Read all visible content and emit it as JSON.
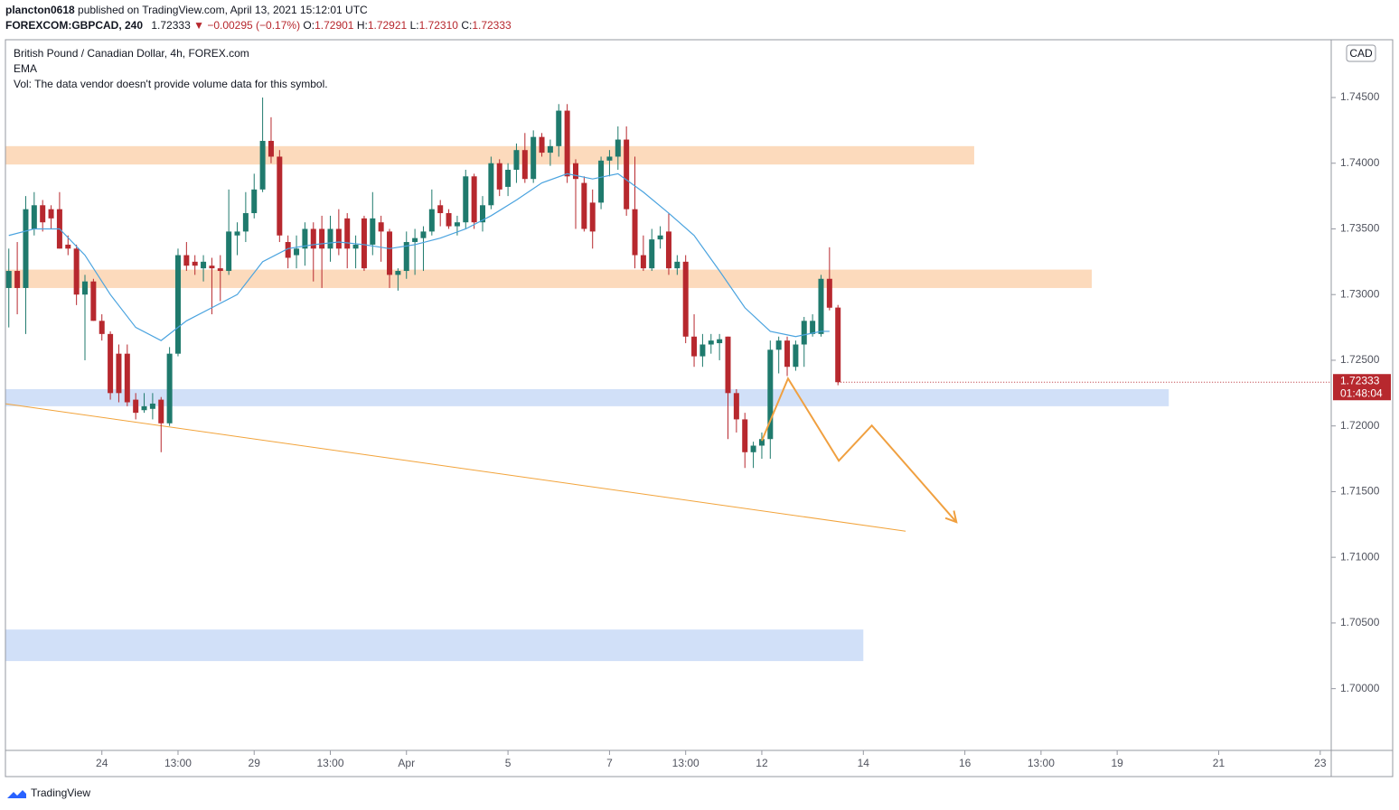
{
  "header": {
    "user": "plancton0618",
    "published": " published on TradingView.com, April 13, 2021 15:12:01 UTC",
    "symbol": "FOREXCOM:GBPCAD, 240",
    "last": "1.72333",
    "change": "▼ −0.00295 (−0.17%)",
    "ohlc": [
      {
        "label": "O:",
        "value": "1.72901"
      },
      {
        "label": "H:",
        "value": "1.72921"
      },
      {
        "label": "L:",
        "value": "1.72310"
      },
      {
        "label": "C:",
        "value": "1.72333"
      }
    ]
  },
  "footer": {
    "brand": "TradingView"
  },
  "chart_data": {
    "type": "candlestick",
    "title": "British Pound / Canadian Dollar, 4h, FOREX.com",
    "volume_note": "Vol: The data vendor doesn't provide volume data for this symbol.",
    "currency": "CAD",
    "countdown": "01:48:04",
    "up_color": "#1f7a6d",
    "down_color": "#b7282e",
    "open": [
      1.7305,
      1.7318,
      1.7305,
      1.735,
      1.7368,
      1.7365,
      1.7365,
      1.7338,
      1.7335,
      1.73,
      1.731,
      1.728,
      1.727,
      1.7255,
      1.7255,
      1.722,
      1.7212,
      1.7213,
      1.722,
      1.7202,
      1.7255,
      1.733,
      1.7325,
      1.732,
      1.7322,
      1.732,
      1.7318,
      1.7345,
      1.7348,
      1.7362,
      1.738,
      1.7417,
      1.7405,
      1.734,
      1.733,
      1.7335,
      1.735,
      1.735,
      1.7335,
      1.735,
      1.7358,
      1.7335,
      1.7358,
      1.7338,
      1.7355,
      1.7348,
      1.7315,
      1.7318,
      1.734,
      1.7343,
      1.7348,
      1.7368,
      1.7362,
      1.7352,
      1.7355,
      1.739,
      1.7355,
      1.7368,
      1.74,
      1.7382,
      1.7395,
      1.741,
      1.7388,
      1.742,
      1.7408,
      1.7413,
      1.744,
      1.74,
      1.7385,
      1.737,
      1.737,
      1.7402,
      1.7405,
      1.7418,
      1.7365,
      1.733,
      1.732,
      1.7342,
      1.7348,
      1.732,
      1.7325,
      1.7268,
      1.7253,
      1.7262,
      1.7263,
      1.7268,
      1.7225,
      1.7205,
      1.718,
      1.7185,
      1.719,
      1.7258,
      1.7265,
      1.7245,
      1.7262,
      1.727,
      1.727,
      1.7312,
      1.72901
    ],
    "high": [
      1.7335,
      1.734,
      1.7375,
      1.7378,
      1.7372,
      1.7368,
      1.7378,
      1.7345,
      1.7338,
      1.7315,
      1.7312,
      1.7285,
      1.7272,
      1.7262,
      1.7262,
      1.7225,
      1.7225,
      1.7225,
      1.7222,
      1.726,
      1.7335,
      1.734,
      1.733,
      1.733,
      1.7328,
      1.733,
      1.738,
      1.7355,
      1.7378,
      1.7392,
      1.745,
      1.7435,
      1.741,
      1.7345,
      1.7345,
      1.7355,
      1.7355,
      1.736,
      1.736,
      1.7365,
      1.7362,
      1.7345,
      1.736,
      1.7378,
      1.736,
      1.735,
      1.732,
      1.7348,
      1.735,
      1.7352,
      1.738,
      1.7372,
      1.7365,
      1.736,
      1.7395,
      1.7392,
      1.7375,
      1.7405,
      1.7403,
      1.74,
      1.7415,
      1.7423,
      1.7425,
      1.7423,
      1.7418,
      1.7445,
      1.7445,
      1.7403,
      1.739,
      1.738,
      1.7405,
      1.741,
      1.7428,
      1.7428,
      1.7405,
      1.7345,
      1.735,
      1.7352,
      1.7362,
      1.733,
      1.733,
      1.7285,
      1.727,
      1.727,
      1.727,
      1.7268,
      1.7228,
      1.721,
      1.7188,
      1.7195,
      1.7265,
      1.7268,
      1.7268,
      1.7265,
      1.7283,
      1.7285,
      1.7315,
      1.7336,
      1.72921
    ],
    "low": [
      1.7275,
      1.7285,
      1.727,
      1.7345,
      1.7348,
      1.735,
      1.7335,
      1.733,
      1.7292,
      1.725,
      1.728,
      1.7265,
      1.722,
      1.7218,
      1.7215,
      1.7205,
      1.721,
      1.7205,
      1.718,
      1.72,
      1.7253,
      1.7318,
      1.7315,
      1.731,
      1.7285,
      1.7295,
      1.7315,
      1.733,
      1.734,
      1.7358,
      1.7378,
      1.74,
      1.734,
      1.732,
      1.732,
      1.7322,
      1.731,
      1.7305,
      1.7325,
      1.733,
      1.732,
      1.732,
      1.7318,
      1.733,
      1.7325,
      1.7305,
      1.7303,
      1.7312,
      1.7315,
      1.7318,
      1.7345,
      1.7352,
      1.735,
      1.7345,
      1.735,
      1.735,
      1.7348,
      1.7365,
      1.7375,
      1.7375,
      1.7385,
      1.7385,
      1.7385,
      1.7405,
      1.7398,
      1.7405,
      1.7385,
      1.735,
      1.7348,
      1.7335,
      1.7365,
      1.739,
      1.7395,
      1.736,
      1.732,
      1.7318,
      1.7318,
      1.7335,
      1.7315,
      1.7315,
      1.7263,
      1.7245,
      1.7245,
      1.7255,
      1.725,
      1.719,
      1.7195,
      1.7168,
      1.7168,
      1.7175,
      1.7175,
      1.724,
      1.7238,
      1.7242,
      1.7245,
      1.7268,
      1.7268,
      1.7288,
      1.7231
    ],
    "close": [
      1.7318,
      1.7305,
      1.7365,
      1.7368,
      1.7355,
      1.7358,
      1.7335,
      1.7335,
      1.73,
      1.731,
      1.728,
      1.727,
      1.7225,
      1.7225,
      1.7218,
      1.721,
      1.7215,
      1.7217,
      1.7202,
      1.7255,
      1.733,
      1.7322,
      1.7322,
      1.7325,
      1.732,
      1.7318,
      1.7348,
      1.7348,
      1.7362,
      1.738,
      1.7417,
      1.7405,
      1.7345,
      1.7328,
      1.7335,
      1.735,
      1.7335,
      1.7335,
      1.735,
      1.7335,
      1.7335,
      1.7338,
      1.732,
      1.7358,
      1.7348,
      1.7315,
      1.7318,
      1.734,
      1.7343,
      1.7348,
      1.7365,
      1.7362,
      1.7352,
      1.7355,
      1.739,
      1.7355,
      1.7368,
      1.74,
      1.738,
      1.7395,
      1.741,
      1.7388,
      1.742,
      1.7408,
      1.7413,
      1.744,
      1.739,
      1.7388,
      1.735,
      1.7348,
      1.7402,
      1.7405,
      1.7418,
      1.7365,
      1.733,
      1.732,
      1.7342,
      1.7345,
      1.732,
      1.7325,
      1.7268,
      1.7253,
      1.7262,
      1.7265,
      1.7266,
      1.7225,
      1.7205,
      1.718,
      1.7185,
      1.719,
      1.7258,
      1.7265,
      1.7245,
      1.7262,
      1.728,
      1.728,
      1.7312,
      1.729,
      1.72333
    ],
    "ema": {
      "name": "EMA",
      "color": "#4aa3df",
      "x": [
        0,
        3,
        6,
        9,
        12,
        15,
        18,
        21,
        24,
        27,
        30,
        33,
        36,
        39,
        42,
        45,
        48,
        51,
        54,
        57,
        60,
        63,
        66,
        69,
        72,
        75,
        78,
        81,
        84,
        87,
        90,
        93,
        96,
        97
      ],
      "values": [
        1.7345,
        1.735,
        1.735,
        1.733,
        1.73,
        1.7275,
        1.7265,
        1.728,
        1.729,
        1.73,
        1.7325,
        1.7335,
        1.7338,
        1.734,
        1.7338,
        1.7335,
        1.7338,
        1.7343,
        1.735,
        1.736,
        1.7372,
        1.7385,
        1.7392,
        1.7388,
        1.7392,
        1.7378,
        1.7362,
        1.7345,
        1.7318,
        1.729,
        1.7272,
        1.7268,
        1.7272,
        1.7272
      ]
    },
    "zones": [
      {
        "color": "#fbd3b0",
        "from": 1.7399,
        "to": 1.7413,
        "end": 114.1
      },
      {
        "color": "#fbd3b0",
        "from": 1.7305,
        "to": 1.7319,
        "end": 128.0
      },
      {
        "color": "#c9dbf7",
        "from": 1.7215,
        "to": 1.7228,
        "end": 137.1
      },
      {
        "color": "#c9dbf7",
        "from": 1.7021,
        "to": 1.7045,
        "end": 101.0
      }
    ],
    "trendline": {
      "color": "#f2a33a",
      "x": [
        -0.4,
        106.0
      ],
      "values": [
        1.72169,
        1.71199
      ]
    },
    "arrow": {
      "color": "#f0a040",
      "x": [
        89.0,
        92.1,
        98.1,
        102.0,
        112.0
      ],
      "values": [
        1.71887,
        1.72361,
        1.71735,
        1.72003,
        1.71268
      ]
    },
    "xlim": [
      -0.4,
      156.3
    ],
    "ylim": [
      1.6953,
      1.7494
    ],
    "xticks": [
      {
        "value": 11,
        "label": "24"
      },
      {
        "value": 20,
        "label": "13:00"
      },
      {
        "value": 29,
        "label": "29"
      },
      {
        "value": 38,
        "label": "13:00"
      },
      {
        "value": 47,
        "label": "Apr"
      },
      {
        "value": 59,
        "label": "5"
      },
      {
        "value": 71,
        "label": "7"
      },
      {
        "value": 80,
        "label": "13:00"
      },
      {
        "value": 89,
        "label": "12"
      },
      {
        "value": 101,
        "label": "14"
      },
      {
        "value": 113,
        "label": "16"
      },
      {
        "value": 122,
        "label": "13:00"
      },
      {
        "value": 131,
        "label": "19"
      },
      {
        "value": 143,
        "label": "21"
      },
      {
        "value": 155,
        "label": "23"
      }
    ],
    "yticks": [
      {
        "value": 1.7,
        "label": "1.70000"
      },
      {
        "value": 1.705,
        "label": "1.70500"
      },
      {
        "value": 1.71,
        "label": "1.71000"
      },
      {
        "value": 1.715,
        "label": "1.71500"
      },
      {
        "value": 1.72,
        "label": "1.72000"
      },
      {
        "value": 1.725,
        "label": "1.72500"
      },
      {
        "value": 1.73,
        "label": "1.73000"
      },
      {
        "value": 1.735,
        "label": "1.73500"
      },
      {
        "value": 1.74,
        "label": "1.74000"
      },
      {
        "value": 1.745,
        "label": "1.74500"
      }
    ]
  }
}
